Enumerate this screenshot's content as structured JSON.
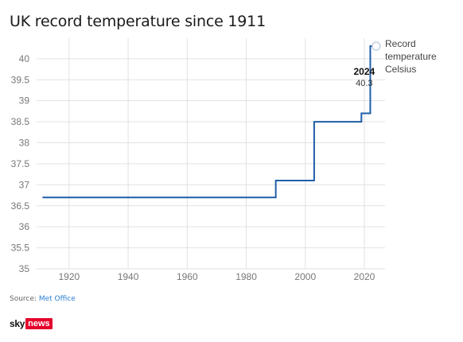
{
  "header": {
    "title": "UK record temperature since 1911"
  },
  "footer": {
    "source_prefix": "Source: ",
    "source_link": "Met Office",
    "logo_sky": "sky",
    "logo_news": "news"
  },
  "colors": {
    "line": "#1f5fa8",
    "grid": "#e2e2e2",
    "tick": "#777777",
    "news_red": "#e4002b"
  },
  "chart_data": {
    "type": "line",
    "title": "UK record temperature since 1911",
    "xlabel": "",
    "ylabel": "",
    "xlim": [
      1909,
      2027
    ],
    "ylim": [
      35,
      40.3
    ],
    "x_ticks": [
      1920,
      1940,
      1960,
      1980,
      2000,
      2020
    ],
    "y_ticks": [
      35,
      35.5,
      36,
      36.5,
      37,
      37.5,
      38,
      38.5,
      39,
      39.5,
      40
    ],
    "grid": true,
    "series": [
      {
        "name": "Record temperature Celsius",
        "step": "after",
        "x": [
          1911,
          1990,
          2003,
          2019,
          2022,
          2024
        ],
        "y": [
          36.7,
          37.1,
          38.5,
          38.7,
          40.3,
          40.3
        ]
      }
    ],
    "annotation": {
      "x": 2024,
      "y": 40.3,
      "label_year": "2024",
      "label_value": "40.3"
    },
    "legend": {
      "line1": "Record",
      "line2": "temperature",
      "line3": "Celsius",
      "placement": "right"
    }
  }
}
